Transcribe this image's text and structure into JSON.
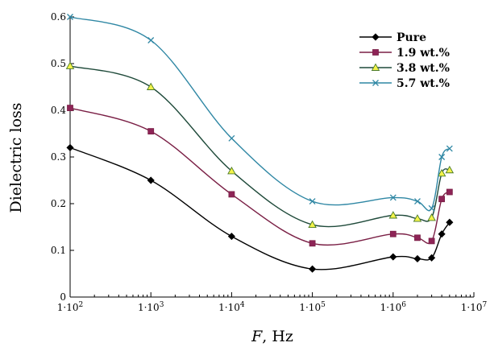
{
  "chart_data": {
    "type": "line",
    "xscale": "log",
    "xlabel_var": "F",
    "xlabel_unit": ", Hz",
    "ylabel": "Dielectric loss",
    "xlim": [
      100,
      10000000
    ],
    "ylim": [
      0,
      0.6
    ],
    "xticks": [
      100,
      1000,
      10000,
      100000,
      1000000,
      10000000
    ],
    "xtick_labels": [
      {
        "base": "1·10",
        "exp": "2"
      },
      {
        "base": "1·10",
        "exp": "3"
      },
      {
        "base": "1·10",
        "exp": "4"
      },
      {
        "base": "1·10",
        "exp": "5"
      },
      {
        "base": "1·10",
        "exp": "6"
      },
      {
        "base": "1·10",
        "exp": "7"
      }
    ],
    "yticks": [
      0,
      0.1,
      0.2,
      0.3,
      0.4,
      0.5,
      0.6
    ],
    "ytick_labels": [
      "0",
      "0.1",
      "0.2",
      "0.3",
      "0.4",
      "0.5",
      "0.6"
    ],
    "grid": false,
    "legend_position": "top-right",
    "x": [
      100,
      1000,
      10000,
      100000,
      1000000,
      2000000,
      3000000,
      4000000,
      5000000
    ],
    "series": [
      {
        "name": "Pure",
        "color": "#000000",
        "marker": "diamond",
        "marker_fill": "#000000",
        "values": [
          0.32,
          0.25,
          0.13,
          0.06,
          0.086,
          0.082,
          0.084,
          0.135,
          0.16
        ]
      },
      {
        "name": "1.9 wt.%",
        "color": "#7a1f45",
        "marker": "square",
        "marker_fill": "#8e2457",
        "values": [
          0.405,
          0.355,
          0.22,
          0.115,
          0.135,
          0.127,
          0.12,
          0.21,
          0.225
        ]
      },
      {
        "name": "3.8 wt.%",
        "color": "#1f4a3a",
        "marker": "triangle",
        "marker_fill": "#f3f34a",
        "values": [
          0.495,
          0.45,
          0.27,
          0.155,
          0.175,
          0.168,
          0.17,
          0.265,
          0.272
        ]
      },
      {
        "name": "5.7 wt.%",
        "color": "#2f87a4",
        "marker": "x",
        "marker_fill": "#2f87a4",
        "values": [
          0.6,
          0.55,
          0.34,
          0.205,
          0.213,
          0.205,
          0.19,
          0.3,
          0.318
        ]
      }
    ]
  }
}
